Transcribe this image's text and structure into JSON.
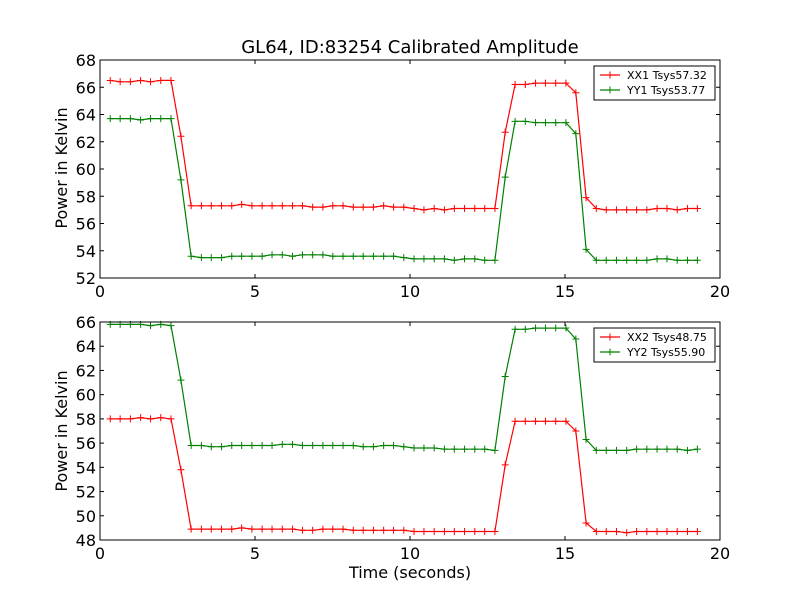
{
  "title": "GL64, ID:83254 Calibrated Amplitude",
  "xlabel": "Time (seconds)",
  "colors": {
    "red": "#ff0000",
    "green": "#008000"
  },
  "chart_data": [
    {
      "type": "line",
      "ylabel": "Power in Kelvin",
      "xlim": [
        0,
        20
      ],
      "ylim": [
        52,
        68
      ],
      "xticks": [
        0,
        5,
        10,
        15,
        20
      ],
      "yticks": [
        52,
        54,
        56,
        58,
        60,
        62,
        64,
        66,
        68
      ],
      "legend_position": "top-right",
      "x": [
        0.33,
        0.65,
        0.98,
        1.31,
        1.63,
        1.96,
        2.29,
        2.61,
        2.94,
        3.27,
        3.59,
        3.92,
        4.25,
        4.57,
        4.9,
        5.23,
        5.55,
        5.88,
        6.21,
        6.53,
        6.86,
        7.19,
        7.51,
        7.84,
        8.17,
        8.49,
        8.82,
        9.15,
        9.47,
        9.8,
        10.13,
        10.45,
        10.78,
        11.11,
        11.43,
        11.76,
        12.09,
        12.41,
        12.74,
        13.07,
        13.39,
        13.72,
        14.05,
        14.37,
        14.7,
        15.03,
        15.35,
        15.68,
        16.01,
        16.33,
        16.66,
        16.99,
        17.31,
        17.64,
        17.97,
        18.29,
        18.62,
        18.95,
        19.27
      ],
      "series": [
        {
          "name": "XX1 Tsys57.32",
          "color": "#ff0000",
          "values": [
            66.5,
            66.4,
            66.4,
            66.5,
            66.4,
            66.5,
            66.5,
            62.4,
            57.3,
            57.3,
            57.3,
            57.3,
            57.3,
            57.4,
            57.3,
            57.3,
            57.3,
            57.3,
            57.3,
            57.3,
            57.2,
            57.2,
            57.3,
            57.3,
            57.2,
            57.2,
            57.2,
            57.3,
            57.2,
            57.2,
            57.1,
            57.0,
            57.1,
            57.0,
            57.1,
            57.1,
            57.1,
            57.1,
            57.1,
            62.7,
            66.2,
            66.2,
            66.3,
            66.3,
            66.3,
            66.3,
            65.6,
            57.9,
            57.1,
            57.0,
            57.0,
            57.0,
            57.0,
            57.0,
            57.1,
            57.1,
            57.0,
            57.1,
            57.1
          ]
        },
        {
          "name": "YY1 Tsys53.77",
          "color": "#008000",
          "values": [
            63.7,
            63.7,
            63.7,
            63.6,
            63.7,
            63.7,
            63.7,
            59.2,
            53.6,
            53.5,
            53.5,
            53.5,
            53.6,
            53.6,
            53.6,
            53.6,
            53.7,
            53.7,
            53.6,
            53.7,
            53.7,
            53.7,
            53.6,
            53.6,
            53.6,
            53.6,
            53.6,
            53.6,
            53.6,
            53.5,
            53.4,
            53.4,
            53.4,
            53.4,
            53.3,
            53.4,
            53.4,
            53.3,
            53.3,
            59.4,
            63.5,
            63.5,
            63.4,
            63.4,
            63.4,
            63.4,
            62.6,
            54.1,
            53.3,
            53.3,
            53.3,
            53.3,
            53.3,
            53.3,
            53.4,
            53.4,
            53.3,
            53.3,
            53.3
          ]
        }
      ]
    },
    {
      "type": "line",
      "ylabel": "Power in Kelvin",
      "xlabel": "Time (seconds)",
      "xlim": [
        0,
        20
      ],
      "ylim": [
        48,
        66
      ],
      "xticks": [
        0,
        5,
        10,
        15,
        20
      ],
      "yticks": [
        48,
        50,
        52,
        54,
        56,
        58,
        60,
        62,
        64,
        66
      ],
      "legend_position": "top-right",
      "x": [
        0.33,
        0.65,
        0.98,
        1.31,
        1.63,
        1.96,
        2.29,
        2.61,
        2.94,
        3.27,
        3.59,
        3.92,
        4.25,
        4.57,
        4.9,
        5.23,
        5.55,
        5.88,
        6.21,
        6.53,
        6.86,
        7.19,
        7.51,
        7.84,
        8.17,
        8.49,
        8.82,
        9.15,
        9.47,
        9.8,
        10.13,
        10.45,
        10.78,
        11.11,
        11.43,
        11.76,
        12.09,
        12.41,
        12.74,
        13.07,
        13.39,
        13.72,
        14.05,
        14.37,
        14.7,
        15.03,
        15.35,
        15.68,
        16.01,
        16.33,
        16.66,
        16.99,
        17.31,
        17.64,
        17.97,
        18.29,
        18.62,
        18.95,
        19.27
      ],
      "series": [
        {
          "name": "XX2 Tsys48.75",
          "color": "#ff0000",
          "values": [
            58.0,
            58.0,
            58.0,
            58.1,
            58.0,
            58.1,
            58.0,
            53.8,
            48.9,
            48.9,
            48.9,
            48.9,
            48.9,
            49.0,
            48.9,
            48.9,
            48.9,
            48.9,
            48.9,
            48.8,
            48.8,
            48.9,
            48.9,
            48.9,
            48.8,
            48.8,
            48.8,
            48.8,
            48.8,
            48.8,
            48.7,
            48.7,
            48.7,
            48.7,
            48.7,
            48.7,
            48.7,
            48.7,
            48.7,
            54.2,
            57.8,
            57.8,
            57.8,
            57.8,
            57.8,
            57.8,
            57.0,
            49.4,
            48.7,
            48.7,
            48.7,
            48.6,
            48.7,
            48.7,
            48.7,
            48.7,
            48.7,
            48.7,
            48.7
          ]
        },
        {
          "name": "YY2 Tsys55.90",
          "color": "#008000",
          "values": [
            65.8,
            65.8,
            65.8,
            65.8,
            65.7,
            65.8,
            65.7,
            61.2,
            55.8,
            55.8,
            55.7,
            55.7,
            55.8,
            55.8,
            55.8,
            55.8,
            55.8,
            55.9,
            55.9,
            55.8,
            55.8,
            55.8,
            55.8,
            55.8,
            55.8,
            55.7,
            55.7,
            55.8,
            55.8,
            55.7,
            55.6,
            55.6,
            55.6,
            55.5,
            55.5,
            55.5,
            55.5,
            55.5,
            55.4,
            61.5,
            65.4,
            65.4,
            65.5,
            65.5,
            65.5,
            65.5,
            64.6,
            56.3,
            55.4,
            55.4,
            55.4,
            55.4,
            55.5,
            55.5,
            55.5,
            55.5,
            55.5,
            55.4,
            55.5
          ]
        }
      ]
    }
  ]
}
